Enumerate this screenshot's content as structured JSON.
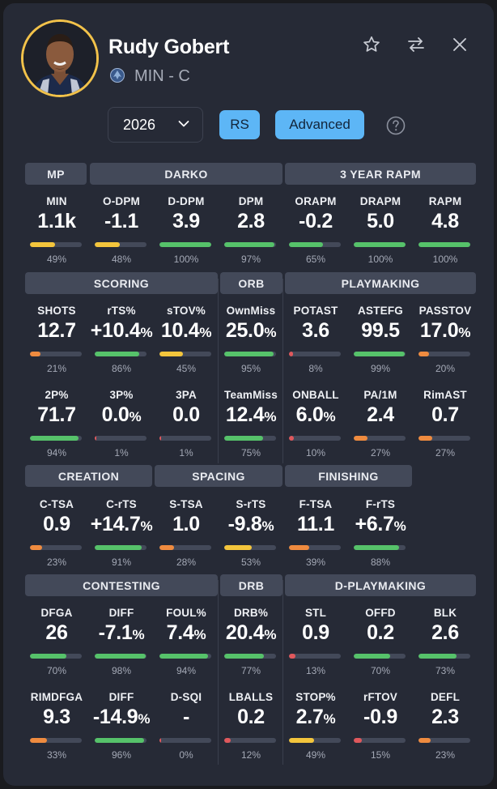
{
  "player": {
    "name": "Rudy Gobert",
    "team_position": "MIN - C"
  },
  "controls": {
    "season": "2026",
    "rs_label": "RS",
    "advanced_label": "Advanced"
  },
  "colors": {
    "green": "#56c26a",
    "yellow": "#f3c53c",
    "orange": "#ef8b3f",
    "red": "#e0585c",
    "accent": "#5db6f6"
  },
  "sections": {
    "mp": "MP",
    "darko": "DARKO",
    "rapm": "3 YEAR RAPM",
    "scoring": "SCORING",
    "orb": "ORB",
    "playmaking": "PLAYMAKING",
    "creation": "CREATION",
    "spacing": "SPACING",
    "finishing": "FINISHING",
    "contesting": "CONTESTING",
    "drb": "DRB",
    "dplaymaking": "D-PLAYMAKING"
  },
  "stats": [
    {
      "id": "min",
      "label": "MIN",
      "value": "1.1k",
      "unit": "",
      "pct": "49%",
      "fill": 49,
      "color": "yellow"
    },
    {
      "id": "odpm",
      "label": "O-DPM",
      "value": "-1.1",
      "unit": "",
      "pct": "48%",
      "fill": 48,
      "color": "yellow"
    },
    {
      "id": "ddpm",
      "label": "D-DPM",
      "value": "3.9",
      "unit": "",
      "pct": "100%",
      "fill": 100,
      "color": "green"
    },
    {
      "id": "dpm",
      "label": "DPM",
      "value": "2.8",
      "unit": "",
      "pct": "97%",
      "fill": 97,
      "color": "green"
    },
    {
      "id": "orapm",
      "label": "ORAPM",
      "value": "-0.2",
      "unit": "",
      "pct": "65%",
      "fill": 65,
      "color": "green"
    },
    {
      "id": "drapm",
      "label": "DRAPM",
      "value": "5.0",
      "unit": "",
      "pct": "100%",
      "fill": 100,
      "color": "green"
    },
    {
      "id": "rapm",
      "label": "RAPM",
      "value": "4.8",
      "unit": "",
      "pct": "100%",
      "fill": 100,
      "color": "green"
    },
    {
      "id": "shots",
      "label": "SHOTS",
      "value": "12.7",
      "unit": "",
      "pct": "21%",
      "fill": 21,
      "color": "orange"
    },
    {
      "id": "rts",
      "label": "rTS%",
      "value": "+10.4",
      "unit": "%",
      "pct": "86%",
      "fill": 86,
      "color": "green"
    },
    {
      "id": "stov",
      "label": "sTOV%",
      "value": "10.4",
      "unit": "%",
      "pct": "45%",
      "fill": 45,
      "color": "yellow"
    },
    {
      "id": "ownmiss",
      "label": "OwnMiss",
      "value": "25.0",
      "unit": "%",
      "pct": "95%",
      "fill": 95,
      "color": "green"
    },
    {
      "id": "potast",
      "label": "POTAST",
      "value": "3.6",
      "unit": "",
      "pct": "8%",
      "fill": 8,
      "color": "red"
    },
    {
      "id": "astefg",
      "label": "ASTEFG",
      "value": "99.5",
      "unit": "",
      "pct": "99%",
      "fill": 99,
      "color": "green"
    },
    {
      "id": "passtov",
      "label": "PASSTOV",
      "value": "17.0",
      "unit": "%",
      "pct": "20%",
      "fill": 20,
      "color": "orange"
    },
    {
      "id": "p2",
      "label": "2P%",
      "value": "71.7",
      "unit": "",
      "pct": "94%",
      "fill": 94,
      "color": "green"
    },
    {
      "id": "p3",
      "label": "3P%",
      "value": "0.0",
      "unit": "%",
      "pct": "1%",
      "fill": 1,
      "color": "red"
    },
    {
      "id": "pa3",
      "label": "3PA",
      "value": "0.0",
      "unit": "",
      "pct": "1%",
      "fill": 1,
      "color": "red"
    },
    {
      "id": "teammiss",
      "label": "TeamMiss",
      "value": "12.4",
      "unit": "%",
      "pct": "75%",
      "fill": 75,
      "color": "green"
    },
    {
      "id": "onball",
      "label": "ONBALL",
      "value": "6.0",
      "unit": "%",
      "pct": "10%",
      "fill": 10,
      "color": "red"
    },
    {
      "id": "pa1m",
      "label": "PA/1M",
      "value": "2.4",
      "unit": "",
      "pct": "27%",
      "fill": 27,
      "color": "orange"
    },
    {
      "id": "rimast",
      "label": "RimAST",
      "value": "0.7",
      "unit": "",
      "pct": "27%",
      "fill": 27,
      "color": "orange"
    },
    {
      "id": "ctsa",
      "label": "C-TSA",
      "value": "0.9",
      "unit": "",
      "pct": "23%",
      "fill": 23,
      "color": "orange"
    },
    {
      "id": "crts",
      "label": "C-rTS",
      "value": "+14.7",
      "unit": "%",
      "pct": "91%",
      "fill": 91,
      "color": "green"
    },
    {
      "id": "stsa",
      "label": "S-TSA",
      "value": "1.0",
      "unit": "",
      "pct": "28%",
      "fill": 28,
      "color": "orange"
    },
    {
      "id": "srts",
      "label": "S-rTS",
      "value": "-9.8",
      "unit": "%",
      "pct": "53%",
      "fill": 53,
      "color": "yellow"
    },
    {
      "id": "ftsa",
      "label": "F-TSA",
      "value": "11.1",
      "unit": "",
      "pct": "39%",
      "fill": 39,
      "color": "orange"
    },
    {
      "id": "frts",
      "label": "F-rTS",
      "value": "+6.7",
      "unit": "%",
      "pct": "88%",
      "fill": 88,
      "color": "green"
    },
    {
      "id": "dfga",
      "label": "DFGA",
      "value": "26",
      "unit": "",
      "pct": "70%",
      "fill": 70,
      "color": "green"
    },
    {
      "id": "diff",
      "label": "DIFF",
      "value": "-7.1",
      "unit": "%",
      "pct": "98%",
      "fill": 98,
      "color": "green"
    },
    {
      "id": "foul",
      "label": "FOUL%",
      "value": "7.4",
      "unit": "%",
      "pct": "94%",
      "fill": 94,
      "color": "green"
    },
    {
      "id": "drb",
      "label": "DRB%",
      "value": "20.4",
      "unit": "%",
      "pct": "77%",
      "fill": 77,
      "color": "green"
    },
    {
      "id": "stl",
      "label": "STL",
      "value": "0.9",
      "unit": "",
      "pct": "13%",
      "fill": 13,
      "color": "red"
    },
    {
      "id": "offd",
      "label": "OFFD",
      "value": "0.2",
      "unit": "",
      "pct": "70%",
      "fill": 70,
      "color": "green"
    },
    {
      "id": "blk",
      "label": "BLK",
      "value": "2.6",
      "unit": "",
      "pct": "73%",
      "fill": 73,
      "color": "green"
    },
    {
      "id": "rimdfga",
      "label": "RIMDFGA",
      "value": "9.3",
      "unit": "",
      "pct": "33%",
      "fill": 33,
      "color": "orange"
    },
    {
      "id": "rimdiff",
      "label": "DIFF",
      "value": "-14.9",
      "unit": "%",
      "pct": "96%",
      "fill": 96,
      "color": "green"
    },
    {
      "id": "dsqi",
      "label": "D-SQI",
      "value": "-",
      "unit": "",
      "pct": "0%",
      "fill": 0,
      "color": "red"
    },
    {
      "id": "lballs",
      "label": "LBALLS",
      "value": "0.2",
      "unit": "",
      "pct": "12%",
      "fill": 12,
      "color": "red"
    },
    {
      "id": "stop",
      "label": "STOP%",
      "value": "2.7",
      "unit": "%",
      "pct": "49%",
      "fill": 49,
      "color": "yellow"
    },
    {
      "id": "rftov",
      "label": "rFTOV",
      "value": "-0.9",
      "unit": "",
      "pct": "15%",
      "fill": 15,
      "color": "red"
    },
    {
      "id": "defl",
      "label": "DEFL",
      "value": "2.3",
      "unit": "",
      "pct": "23%",
      "fill": 23,
      "color": "orange"
    }
  ]
}
